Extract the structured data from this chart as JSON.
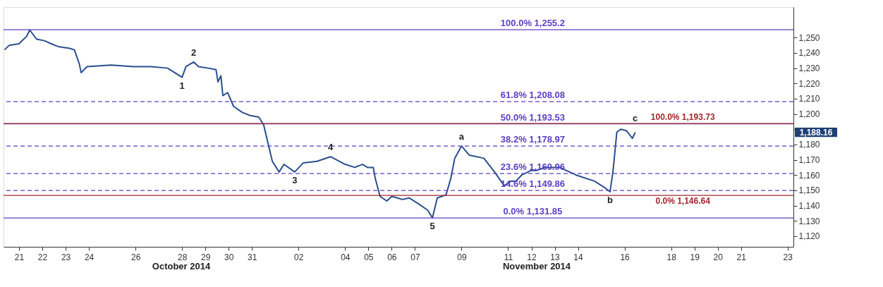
{
  "chart_data": {
    "type": "line",
    "x": [
      "2014-10-20T09:00",
      "2014-10-20T14:00",
      "2014-10-21T00:00",
      "2014-10-21T08:00",
      "2014-10-21T11:00",
      "2014-10-21T18:00",
      "2014-10-22T02:00",
      "2014-10-22T09:00",
      "2014-10-22T17:00",
      "2014-10-23T04:00",
      "2014-10-23T09:00",
      "2014-10-23T14:00",
      "2014-10-23T16:00",
      "2014-10-23T22:00",
      "2014-10-24T23:00",
      "2014-10-25T22:00",
      "2014-10-26T16:00",
      "2014-10-27T09:00",
      "2014-10-28T00:00",
      "2014-10-28T04:00",
      "2014-10-28T12:00",
      "2014-10-28T17:00",
      "2014-10-29T03:00",
      "2014-10-29T11:00",
      "2014-10-29T13:00",
      "2014-10-29T16:00",
      "2014-10-29T18:00",
      "2014-10-29T23:00",
      "2014-10-30T05:00",
      "2014-10-30T14:00",
      "2014-10-30T22:00",
      "2014-10-31T07:00",
      "2014-10-31T12:00",
      "2014-10-31T21:00",
      "2014-11-01T04:00",
      "2014-11-01T09:00",
      "2014-11-01T20:00",
      "2014-11-02T05:00",
      "2014-11-02T19:00",
      "2014-11-03T09:00",
      "2014-11-04T00:00",
      "2014-11-04T10:00",
      "2014-11-04T18:00",
      "2014-11-04T23:00",
      "2014-11-05T05:00",
      "2014-11-05T07:00",
      "2014-11-05T12:00",
      "2014-11-05T19:00",
      "2014-11-06T00:00",
      "2014-11-06T06:00",
      "2014-11-06T11:00",
      "2014-11-06T18:00",
      "2014-11-07T04:00",
      "2014-11-07T13:00",
      "2014-11-07T18:00",
      "2014-11-07T23:00",
      "2014-11-08T08:00",
      "2014-11-08T13:00",
      "2014-11-08T17:00",
      "2014-11-09T00:00",
      "2014-11-09T08:00",
      "2014-11-09T23:00",
      "2014-11-10T10:00",
      "2014-11-10T20:00",
      "2014-11-11T03:00",
      "2014-11-11T08:00",
      "2014-11-11T14:00",
      "2014-11-12T00:00",
      "2014-11-12T05:00",
      "2014-11-12T14:00",
      "2014-11-13T05:00",
      "2014-11-13T22:00",
      "2014-11-14T17:00",
      "2014-11-15T03:00",
      "2014-11-15T09:00",
      "2014-11-15T12:00",
      "2014-11-15T16:00",
      "2014-11-15T20:00",
      "2014-11-16T02:00",
      "2014-11-16T08:00",
      "2014-11-16T11:00"
    ],
    "series": [
      {
        "color": "#2b4f8c",
        "values": [
          1242,
          1245,
          1246,
          1251,
          1255,
          1249,
          1248,
          1246,
          1244,
          1243,
          1242,
          1233,
          1227,
          1231,
          1232,
          1231,
          1231,
          1230,
          1224,
          1231,
          1234,
          1231,
          1230,
          1229,
          1221,
          1225,
          1212,
          1214,
          1205,
          1201,
          1199,
          1198,
          1193,
          1169,
          1162,
          1167,
          1162,
          1168,
          1169,
          1172,
          1167,
          1165,
          1167,
          1165,
          1165,
          1158,
          1146,
          1143,
          1146,
          1145,
          1144,
          1145,
          1141,
          1137,
          1132,
          1145,
          1147,
          1158,
          1171,
          1179,
          1173,
          1171,
          1162,
          1153,
          1156,
          1156,
          1160,
          1163,
          1163,
          1165,
          1165,
          1160,
          1156,
          1152,
          1149,
          1162,
          1188,
          1190,
          1189,
          1184,
          1188
        ]
      }
    ],
    "xlim": [
      "2014-10-20T08:00",
      "2014-11-23T06:00"
    ],
    "xticks": [
      {
        "value": "2014-10-21",
        "label": "21"
      },
      {
        "value": "2014-10-22",
        "label": "22"
      },
      {
        "value": "2014-10-23",
        "label": "23"
      },
      {
        "value": "2014-10-24",
        "label": "24"
      },
      {
        "value": "2014-10-26",
        "label": "26"
      },
      {
        "value": "2014-10-28",
        "label": "28"
      },
      {
        "value": "2014-10-29",
        "label": "29"
      },
      {
        "value": "2014-10-30",
        "label": "30"
      },
      {
        "value": "2014-10-31",
        "label": "31"
      },
      {
        "value": "2014-11-02",
        "label": "02"
      },
      {
        "value": "2014-11-04",
        "label": "04"
      },
      {
        "value": "2014-11-05",
        "label": "05"
      },
      {
        "value": "2014-11-06",
        "label": "06"
      },
      {
        "value": "2014-11-07",
        "label": "07"
      },
      {
        "value": "2014-11-09",
        "label": "09"
      },
      {
        "value": "2014-11-11",
        "label": "11"
      },
      {
        "value": "2014-11-12",
        "label": "12"
      },
      {
        "value": "2014-11-13",
        "label": "13"
      },
      {
        "value": "2014-11-14",
        "label": "14"
      },
      {
        "value": "2014-11-16",
        "label": "16"
      },
      {
        "value": "2014-11-18",
        "label": "18"
      },
      {
        "value": "2014-11-19",
        "label": "19"
      },
      {
        "value": "2014-11-20",
        "label": "20"
      },
      {
        "value": "2014-11-21",
        "label": "21"
      },
      {
        "value": "2014-11-23",
        "label": "23"
      }
    ],
    "ylim": [
      1113,
      1270
    ],
    "yticks": [
      {
        "value": 1120,
        "label": "1,120"
      },
      {
        "value": 1130,
        "label": "1,130"
      },
      {
        "value": 1140,
        "label": "1,140"
      },
      {
        "value": 1150,
        "label": "1,150"
      },
      {
        "value": 1160,
        "label": "1,160"
      },
      {
        "value": 1170,
        "label": "1,170"
      },
      {
        "value": 1180,
        "label": "1,180"
      },
      {
        "value": 1190,
        "label": null
      },
      {
        "value": 1200,
        "label": "1,200"
      },
      {
        "value": 1210,
        "label": "1,210"
      },
      {
        "value": 1220,
        "label": "1,220"
      },
      {
        "value": 1230,
        "label": "1,230"
      },
      {
        "value": 1240,
        "label": "1,240"
      },
      {
        "value": 1250,
        "label": "1,250"
      }
    ],
    "grid": false,
    "marker": "none",
    "line_style": "solid",
    "ref_lines": [
      {
        "axis": "y",
        "value": 1255.2,
        "label": "100.0% 1,255.2",
        "color": "#5b3fc4",
        "line_style": "solid"
      },
      {
        "axis": "y",
        "value": 1208.08,
        "label": "61.8%  1,208.08",
        "color": "#5b3fc4",
        "line_style": "dashed"
      },
      {
        "axis": "y",
        "value": 1193.53,
        "label": "50.0%  1,193.53",
        "color": "#5b3fc4",
        "line_style": "solid"
      },
      {
        "axis": "y",
        "value": 1178.97,
        "label": "38.2%  1,178.97",
        "color": "#5b3fc4",
        "line_style": "dashed"
      },
      {
        "axis": "y",
        "value": 1160.96,
        "label": "23.6%  1,160.96",
        "color": "#5b3fc4",
        "line_style": "dashed"
      },
      {
        "axis": "y",
        "value": 1149.86,
        "label": "14.6%  1,149.86",
        "color": "#5b3fc4",
        "line_style": "dashed"
      },
      {
        "axis": "y",
        "value": 1131.85,
        "label": "0.0%  1,131.85",
        "color": "#5b3fc4",
        "line_style": "solid"
      },
      {
        "axis": "y",
        "value": 1193.73,
        "label": "100.0% 1,193.73",
        "color": "#a0282d",
        "line_style": "solid"
      },
      {
        "axis": "y",
        "value": 1146.64,
        "label": "0.0%        1,146.64",
        "color": "#a0282d",
        "line_style": "solid"
      }
    ],
    "annotations": [
      {
        "text": "1",
        "x": "2014-10-28T00:00",
        "y": 1224
      },
      {
        "text": "2",
        "x": "2014-10-28T12:00",
        "y": 1234
      },
      {
        "text": "3",
        "x": "2014-11-01T20:00",
        "y": 1162
      },
      {
        "text": "4",
        "x": "2014-11-03T09:00",
        "y": 1172
      },
      {
        "text": "5",
        "x": "2014-11-07T18:00",
        "y": 1132
      },
      {
        "text": "a",
        "x": "2014-11-09T00:00",
        "y": 1179
      },
      {
        "text": "b",
        "x": "2014-11-15T09:00",
        "y": 1149
      },
      {
        "text": "c",
        "x": "2014-11-16T11:00",
        "y": 1191
      },
      "1,188.16",
      "October 2014",
      "November 2014"
    ]
  }
}
